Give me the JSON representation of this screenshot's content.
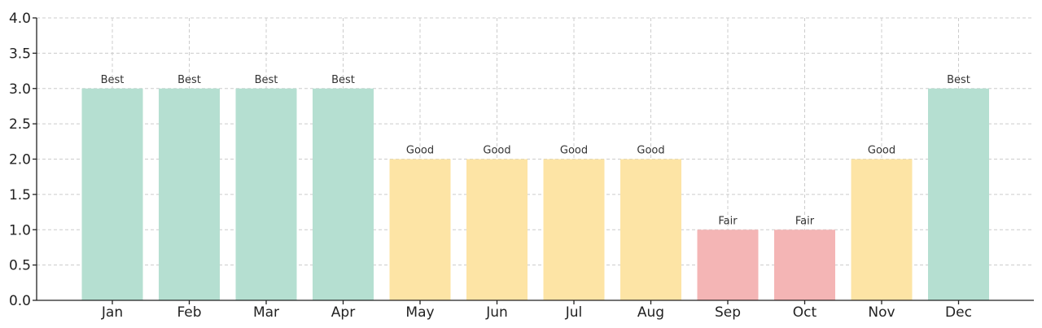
{
  "chart_data": {
    "type": "bar",
    "title": "",
    "xlabel": "",
    "ylabel": "",
    "categories": [
      "Jan",
      "Feb",
      "Mar",
      "Apr",
      "May",
      "Jun",
      "Jul",
      "Aug",
      "Sep",
      "Oct",
      "Nov",
      "Dec"
    ],
    "values": [
      3,
      3,
      3,
      3,
      2,
      2,
      2,
      2,
      1,
      1,
      2,
      3
    ],
    "bar_labels": [
      "Best",
      "Best",
      "Best",
      "Best",
      "Good",
      "Good",
      "Good",
      "Good",
      "Fair",
      "Fair",
      "Good",
      "Best"
    ],
    "bar_colors": [
      "#b5dfd1",
      "#b5dfd1",
      "#b5dfd1",
      "#b5dfd1",
      "#fde4a5",
      "#fde4a5",
      "#fde4a5",
      "#fde4a5",
      "#f4b5b5",
      "#f4b5b5",
      "#fde4a5",
      "#b5dfd1"
    ],
    "ylim": [
      0,
      4
    ],
    "yticks": [
      "0.0",
      "0.5",
      "1.0",
      "1.5",
      "2.0",
      "2.5",
      "3.0",
      "3.5",
      "4.0"
    ],
    "grid": true,
    "legend": "none"
  }
}
